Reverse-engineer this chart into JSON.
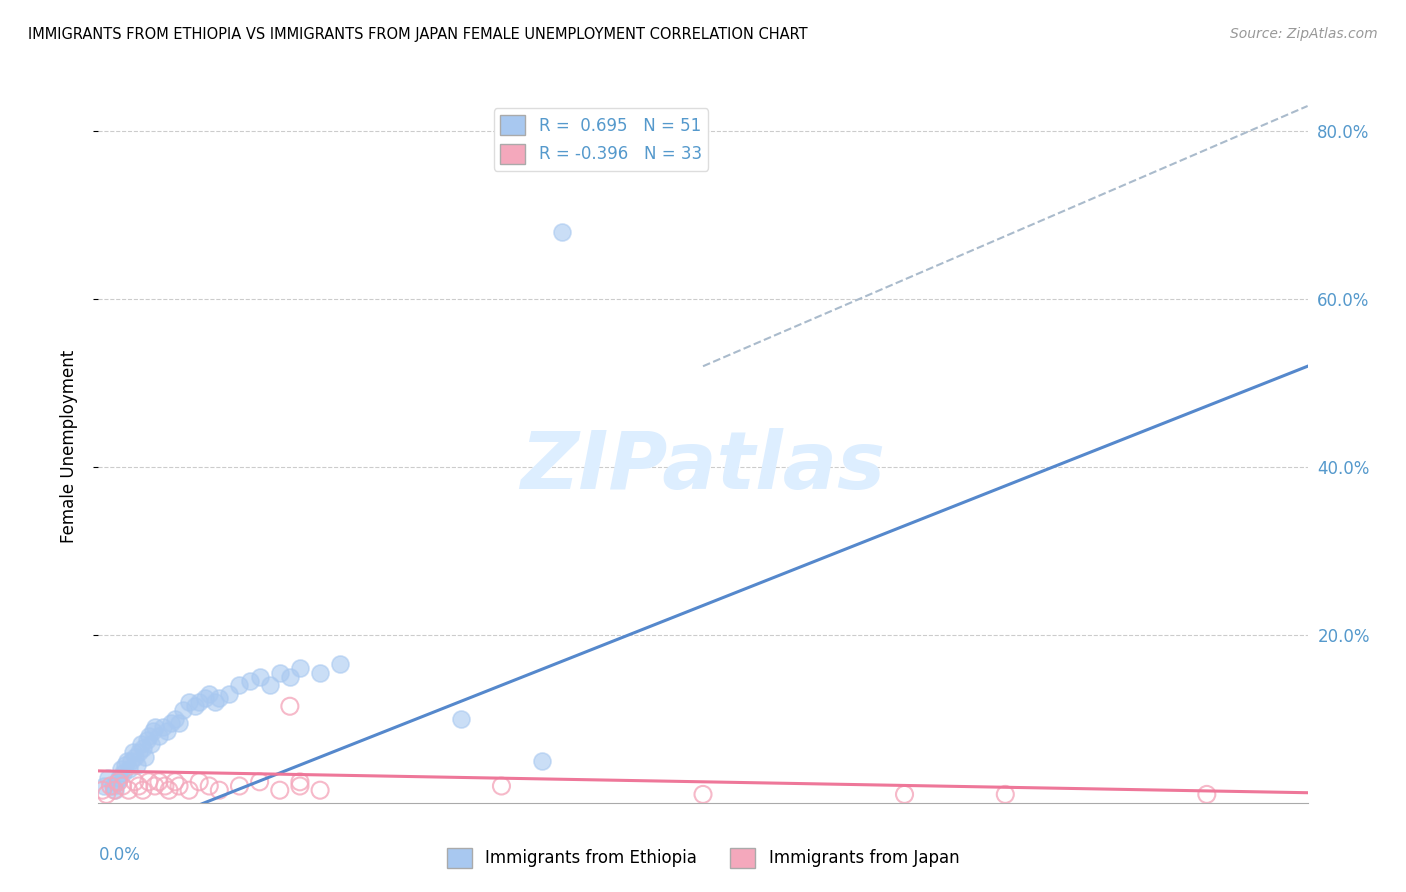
{
  "title": "IMMIGRANTS FROM ETHIOPIA VS IMMIGRANTS FROM JAPAN FEMALE UNEMPLOYMENT CORRELATION CHART",
  "source": "Source: ZipAtlas.com",
  "ylabel": "Female Unemployment",
  "xlim": [
    0.0,
    0.6
  ],
  "ylim": [
    0.0,
    0.85
  ],
  "yticks": [
    0.2,
    0.4,
    0.6,
    0.8
  ],
  "ytick_labels": [
    "20.0%",
    "40.0%",
    "60.0%",
    "80.0%"
  ],
  "legend_blue_label": "R =  0.695   N = 51",
  "legend_pink_label": "R = -0.396   N = 33",
  "blue_scatter_color": "#A8C8F0",
  "pink_scatter_color": "#F4A8BC",
  "blue_line_color": "#5588CC",
  "pink_line_color": "#EE7799",
  "dashed_line_color": "#AABBCC",
  "watermark": "ZIPatlas",
  "watermark_color": "#DDEEFF",
  "ethiopia_scatter_x": [
    0.003,
    0.005,
    0.007,
    0.008,
    0.009,
    0.01,
    0.011,
    0.012,
    0.013,
    0.014,
    0.015,
    0.016,
    0.017,
    0.018,
    0.019,
    0.02,
    0.021,
    0.022,
    0.023,
    0.024,
    0.025,
    0.026,
    0.027,
    0.028,
    0.03,
    0.032,
    0.034,
    0.036,
    0.038,
    0.04,
    0.042,
    0.045,
    0.048,
    0.05,
    0.053,
    0.055,
    0.058,
    0.06,
    0.065,
    0.07,
    0.075,
    0.08,
    0.085,
    0.09,
    0.095,
    0.1,
    0.11,
    0.12,
    0.18,
    0.22,
    0.23
  ],
  "ethiopia_scatter_y": [
    0.02,
    0.03,
    0.02,
    0.015,
    0.025,
    0.03,
    0.04,
    0.035,
    0.045,
    0.05,
    0.04,
    0.05,
    0.06,
    0.055,
    0.045,
    0.06,
    0.07,
    0.065,
    0.055,
    0.075,
    0.08,
    0.07,
    0.085,
    0.09,
    0.08,
    0.09,
    0.085,
    0.095,
    0.1,
    0.095,
    0.11,
    0.12,
    0.115,
    0.12,
    0.125,
    0.13,
    0.12,
    0.125,
    0.13,
    0.14,
    0.145,
    0.15,
    0.14,
    0.155,
    0.15,
    0.16,
    0.155,
    0.165,
    0.1,
    0.05,
    0.68
  ],
  "japan_scatter_x": [
    0.002,
    0.004,
    0.006,
    0.008,
    0.01,
    0.012,
    0.015,
    0.018,
    0.02,
    0.022,
    0.025,
    0.028,
    0.03,
    0.033,
    0.035,
    0.038,
    0.04,
    0.045,
    0.05,
    0.055,
    0.06,
    0.07,
    0.08,
    0.09,
    0.095,
    0.1,
    0.11,
    0.2,
    0.3,
    0.4,
    0.45,
    0.55,
    0.1
  ],
  "japan_scatter_y": [
    0.015,
    0.01,
    0.02,
    0.015,
    0.025,
    0.02,
    0.015,
    0.025,
    0.02,
    0.015,
    0.025,
    0.02,
    0.025,
    0.02,
    0.015,
    0.025,
    0.02,
    0.015,
    0.025,
    0.02,
    0.015,
    0.02,
    0.025,
    0.015,
    0.115,
    0.02,
    0.015,
    0.02,
    0.01,
    0.01,
    0.01,
    0.01,
    0.025
  ],
  "blue_line_x": [
    0.0,
    0.6
  ],
  "blue_line_y": [
    -0.05,
    0.52
  ],
  "pink_line_x": [
    0.0,
    0.6
  ],
  "pink_line_y": [
    0.038,
    0.012
  ],
  "dashed_line_x": [
    0.3,
    0.6
  ],
  "dashed_line_y": [
    0.52,
    0.83
  ]
}
